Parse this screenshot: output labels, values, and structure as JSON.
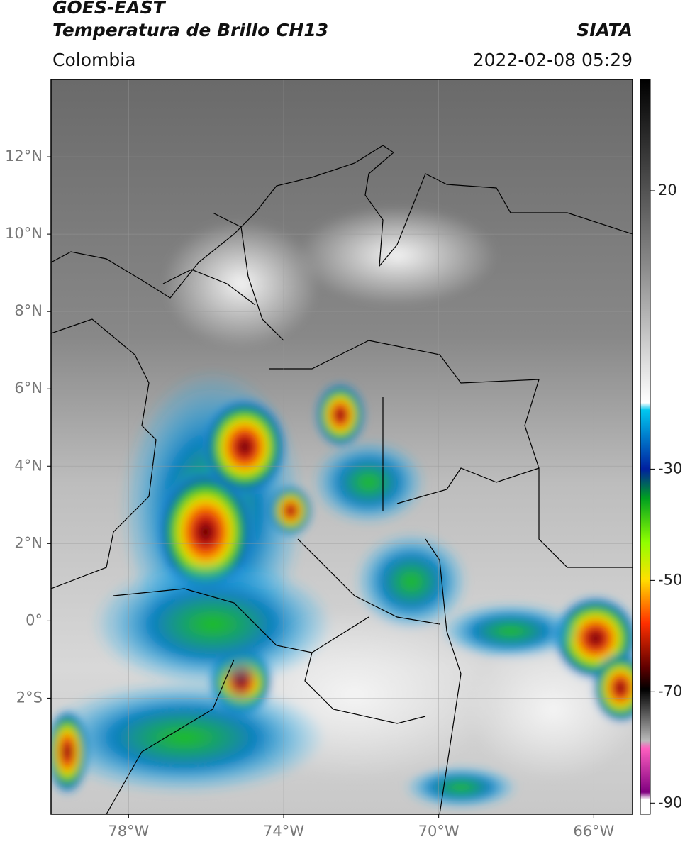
{
  "header": {
    "satellite": "GOES-EAST",
    "product": "Temperatura de Brillo CH13",
    "source": "SIATA",
    "region": "Colombia",
    "timestamp": "2022-02-08 05:29"
  },
  "map": {
    "lonlim": [
      -80,
      -65
    ],
    "latlim": [
      -5,
      14
    ],
    "lonticks": [
      {
        "value": -78,
        "label": "78°W"
      },
      {
        "value": -74,
        "label": "74°W"
      },
      {
        "value": -70,
        "label": "70°W"
      },
      {
        "value": -66,
        "label": "66°W"
      }
    ],
    "latticks": [
      {
        "value": 12,
        "label": "12°N"
      },
      {
        "value": 10,
        "label": "10°N"
      },
      {
        "value": 8,
        "label": "8°N"
      },
      {
        "value": 6,
        "label": "6°N"
      },
      {
        "value": 4,
        "label": "4°N"
      },
      {
        "value": 2,
        "label": "2°N"
      },
      {
        "value": 0,
        "label": "0°"
      },
      {
        "value": -2,
        "label": "2°S"
      }
    ],
    "grid": true
  },
  "colorbar": {
    "lim": [
      -92,
      40
    ],
    "ticks": [
      20,
      -30,
      -50,
      -70,
      -90
    ]
  }
}
